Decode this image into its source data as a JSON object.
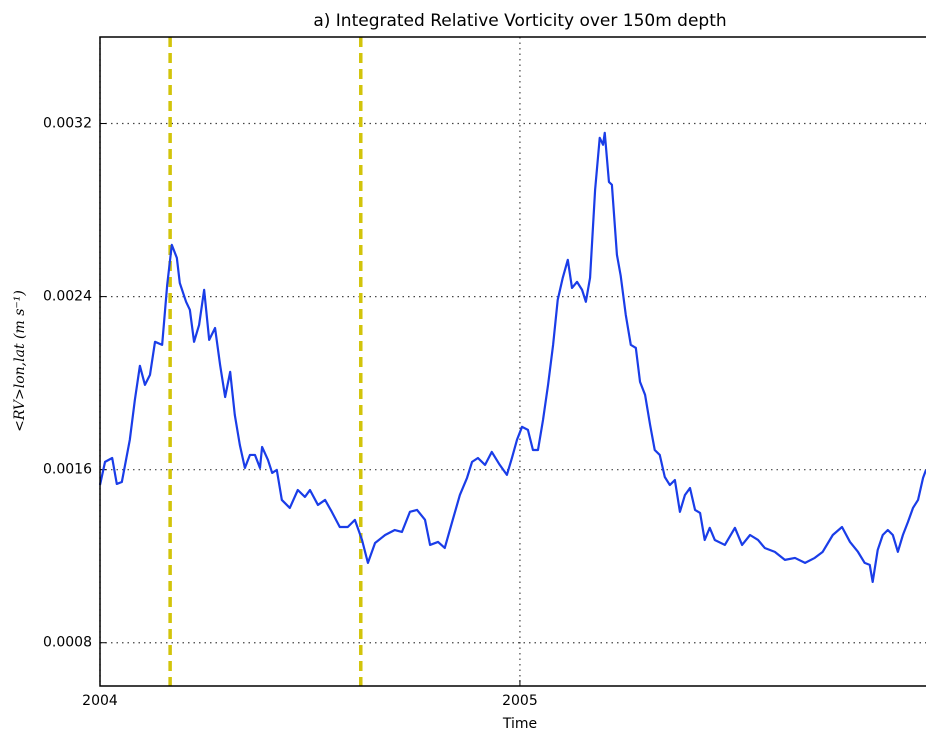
{
  "chart_data": {
    "type": "line",
    "title": "a) Integrated Relative Vorticity over 150m depth",
    "xlabel": "Time",
    "ylabel": "<RV>lon,lat (m s⁻¹)",
    "xlim": [
      2004,
      2005.967
    ],
    "xticks": [
      2004,
      2005
    ],
    "ylim": [
      0.0006,
      0.0036
    ],
    "yticks": [
      0.0008,
      0.0016,
      0.0024,
      0.0032
    ],
    "grid": true,
    "vlines": [
      2004.167,
      2004.621
    ],
    "vline_color": "#d2c40a",
    "x": [
      2004.0,
      2004.012,
      2004.029,
      2004.04,
      2004.052,
      2004.071,
      2004.083,
      2004.095,
      2004.107,
      2004.119,
      2004.131,
      2004.148,
      2004.16,
      2004.171,
      2004.183,
      2004.19,
      2004.205,
      2004.214,
      2004.224,
      2004.236,
      2004.248,
      2004.26,
      2004.274,
      2004.286,
      2004.298,
      2004.31,
      2004.321,
      2004.333,
      2004.345,
      2004.357,
      2004.369,
      2004.381,
      2004.386,
      2004.4,
      2004.41,
      2004.421,
      2004.433,
      2004.452,
      2004.471,
      2004.488,
      2004.5,
      2004.519,
      2004.536,
      2004.552,
      2004.571,
      2004.59,
      2004.607,
      2004.624,
      2004.638,
      2004.655,
      2004.679,
      2004.702,
      2004.719,
      2004.738,
      2004.755,
      2004.774,
      2004.786,
      2004.805,
      2004.821,
      2004.84,
      2004.857,
      2004.874,
      2004.886,
      2004.9,
      2004.917,
      2004.933,
      2004.952,
      2004.969,
      2004.981,
      2004.993,
      2005.005,
      2005.019,
      2005.031,
      2005.043,
      2005.055,
      2005.067,
      2005.079,
      2005.09,
      2005.102,
      2005.114,
      2005.124,
      2005.136,
      2005.148,
      2005.157,
      2005.167,
      2005.179,
      2005.19,
      2005.198,
      2005.202,
      2005.212,
      2005.219,
      2005.231,
      2005.24,
      2005.252,
      2005.264,
      2005.276,
      2005.286,
      2005.298,
      2005.31,
      2005.321,
      2005.333,
      2005.345,
      2005.357,
      2005.369,
      2005.381,
      2005.393,
      2005.405,
      2005.417,
      2005.429,
      2005.44,
      2005.452,
      2005.464,
      2005.488,
      2005.512,
      2005.529,
      2005.548,
      2005.567,
      2005.583,
      2005.607,
      2005.631,
      2005.655,
      2005.679,
      2005.702,
      2005.721,
      2005.745,
      2005.767,
      2005.786,
      2005.805,
      2005.821,
      2005.833,
      2005.84,
      2005.852,
      2005.864,
      2005.876,
      2005.888,
      2005.9,
      2005.912,
      2005.924,
      2005.936,
      2005.948,
      2005.96,
      2005.967
    ],
    "series": [
      {
        "name": "RV",
        "color": "#1a3de8",
        "values": [
          0.001529,
          0.001636,
          0.001654,
          0.001534,
          0.001543,
          0.001738,
          0.001922,
          0.00208,
          0.001992,
          0.002038,
          0.002191,
          0.002177,
          0.002454,
          0.002639,
          0.002579,
          0.002463,
          0.002376,
          0.002339,
          0.002191,
          0.002269,
          0.002431,
          0.0022,
          0.002255,
          0.002084,
          0.001936,
          0.002052,
          0.001853,
          0.001714,
          0.001608,
          0.001668,
          0.001668,
          0.001608,
          0.001705,
          0.001645,
          0.001585,
          0.001599,
          0.00146,
          0.001423,
          0.001506,
          0.001474,
          0.001506,
          0.001437,
          0.00146,
          0.001405,
          0.001335,
          0.001335,
          0.001368,
          0.001275,
          0.001169,
          0.001261,
          0.001298,
          0.001321,
          0.001312,
          0.001405,
          0.001414,
          0.001368,
          0.001252,
          0.001266,
          0.001238,
          0.001368,
          0.001483,
          0.001562,
          0.001636,
          0.001654,
          0.001622,
          0.001682,
          0.001622,
          0.001576,
          0.001654,
          0.001738,
          0.001798,
          0.001784,
          0.001691,
          0.001691,
          0.00183,
          0.001992,
          0.002177,
          0.002385,
          0.002487,
          0.00257,
          0.00244,
          0.002468,
          0.002431,
          0.002376,
          0.002487,
          0.002893,
          0.003134,
          0.003102,
          0.003157,
          0.00293,
          0.002917,
          0.002593,
          0.002496,
          0.002316,
          0.002177,
          0.002163,
          0.002006,
          0.001946,
          0.001807,
          0.001691,
          0.001668,
          0.001566,
          0.001529,
          0.001552,
          0.001405,
          0.001483,
          0.001515,
          0.001414,
          0.0014,
          0.001275,
          0.001331,
          0.001275,
          0.001252,
          0.001331,
          0.001252,
          0.001298,
          0.001275,
          0.001238,
          0.00122,
          0.001183,
          0.001192,
          0.001169,
          0.001192,
          0.00122,
          0.001298,
          0.001335,
          0.001266,
          0.00122,
          0.001169,
          0.00116,
          0.001081,
          0.001229,
          0.001298,
          0.001321,
          0.001298,
          0.00122,
          0.001298,
          0.001358,
          0.001423,
          0.00146,
          0.001562,
          0.001599
        ]
      }
    ]
  }
}
